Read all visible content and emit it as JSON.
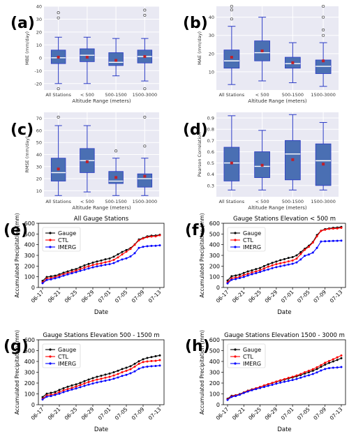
{
  "chart_data": [
    {
      "panel": "(a)",
      "type": "boxplot",
      "title": "",
      "ylabel": "MBE (mm/day)",
      "xlabel": "Altitude Range (meters)",
      "categories": [
        "All Stations",
        "< 500",
        "500-1500",
        "1500-3000"
      ],
      "ylim": [
        -25,
        40
      ],
      "yticks": [
        -20,
        -10,
        0,
        10,
        20,
        30,
        40
      ],
      "boxes": [
        {
          "whislo": -20,
          "q1": -4.5,
          "med": 0,
          "q3": 6,
          "whishi": 16,
          "mean": 0.5,
          "fliers": [
            31,
            35,
            -24
          ]
        },
        {
          "whislo": -20,
          "q1": -3,
          "med": 2,
          "q3": 7,
          "whishi": 16,
          "mean": 0.5,
          "fliers": []
        },
        {
          "whislo": -14,
          "q1": -6,
          "med": -3.5,
          "q3": 4,
          "whishi": 15,
          "mean": -2,
          "fliers": []
        },
        {
          "whislo": -18,
          "q1": -4,
          "med": 1,
          "q3": 6,
          "whishi": 15,
          "mean": 1,
          "fliers": [
            33,
            37,
            -24
          ]
        }
      ]
    },
    {
      "panel": "(b)",
      "type": "boxplot",
      "title": "",
      "ylabel": "MAE (mm/day)",
      "xlabel": "Altitude Range (meters)",
      "categories": [
        "All Stations",
        "< 500",
        "500-1500",
        "1500-3000"
      ],
      "ylim": [
        0,
        46
      ],
      "yticks": [
        10,
        20,
        30,
        40
      ],
      "boxes": [
        {
          "whislo": 3,
          "q1": 12,
          "med": 16,
          "q3": 22,
          "whishi": 35,
          "mean": 18,
          "fliers": [
            39,
            44,
            46
          ]
        },
        {
          "whislo": 5,
          "q1": 16,
          "med": 20.5,
          "q3": 27,
          "whishi": 40,
          "mean": 21.5,
          "fliers": []
        },
        {
          "whislo": 4,
          "q1": 12,
          "med": 14.5,
          "q3": 18,
          "whishi": 26,
          "mean": 15,
          "fliers": []
        },
        {
          "whislo": 2,
          "q1": 9,
          "med": 13,
          "q3": 16.5,
          "whishi": 26,
          "mean": 16,
          "fliers": [
            30,
            33,
            40,
            46
          ]
        }
      ]
    },
    {
      "panel": "(c)",
      "type": "boxplot",
      "title": "",
      "ylabel": "RMSE (mm/day)",
      "xlabel": "Altitude Range (meters)",
      "categories": [
        "All Stations",
        "< 500",
        "500-1500",
        "1500-3000"
      ],
      "ylim": [
        5,
        75
      ],
      "yticks": [
        10,
        20,
        30,
        40,
        50,
        60,
        70
      ],
      "boxes": [
        {
          "whislo": 6,
          "q1": 18,
          "med": 25,
          "q3": 37,
          "whishi": 64,
          "mean": 28,
          "fliers": [
            71
          ]
        },
        {
          "whislo": 9,
          "q1": 25,
          "med": 35,
          "q3": 45,
          "whishi": 64,
          "mean": 34,
          "fliers": []
        },
        {
          "whislo": 6,
          "q1": 16,
          "med": 18,
          "q3": 26,
          "whishi": 37,
          "mean": 21,
          "fliers": [
            43
          ]
        },
        {
          "whislo": 6,
          "q1": 13,
          "med": 20,
          "q3": 24,
          "whishi": 37,
          "mean": 22,
          "fliers": [
            47,
            71
          ]
        }
      ]
    },
    {
      "panel": "(d)",
      "type": "boxplot",
      "title": "",
      "ylabel": "Pearson Correlation",
      "xlabel": "Altitude Range (meters)",
      "categories": [
        "All Stations",
        "< 500",
        "500-1500",
        "1500-3000"
      ],
      "ylim": [
        0.2,
        0.95
      ],
      "yticks": [
        0.3,
        0.4,
        0.5,
        0.6,
        0.7,
        0.8,
        0.9
      ],
      "boxes": [
        {
          "whislo": 0.26,
          "q1": 0.34,
          "med": 0.5,
          "q3": 0.64,
          "whishi": 0.92,
          "mean": 0.5,
          "fliers": []
        },
        {
          "whislo": 0.26,
          "q1": 0.37,
          "med": 0.47,
          "q3": 0.6,
          "whishi": 0.79,
          "mean": 0.48,
          "fliers": []
        },
        {
          "whislo": 0.26,
          "q1": 0.35,
          "med": 0.58,
          "q3": 0.7,
          "whishi": 0.93,
          "mean": 0.53,
          "fliers": []
        },
        {
          "whislo": 0.26,
          "q1": 0.3,
          "med": 0.52,
          "q3": 0.67,
          "whishi": 0.86,
          "mean": 0.49,
          "fliers": []
        }
      ]
    },
    {
      "panel": "(e)",
      "type": "line",
      "title": "All Gauge Stations",
      "xlabel": "Date",
      "ylabel": "Accumulated Precipitation (mm)",
      "xticklabels": [
        "06-17",
        "06-21",
        "06-25",
        "06-29",
        "07-01",
        "07-05",
        "07-09",
        "07-13"
      ],
      "ylim": [
        0,
        600
      ],
      "yticks": [
        0,
        100,
        200,
        300,
        400,
        500,
        600
      ],
      "series": [
        {
          "name": "Gauge",
          "color": "#000000",
          "values": [
            62,
            98,
            104,
            110,
            123,
            138,
            150,
            164,
            172,
            190,
            206,
            220,
            232,
            243,
            252,
            263,
            271,
            288,
            310,
            332,
            350,
            368,
            402,
            448,
            462,
            478,
            484,
            486,
            492
          ]
        },
        {
          "name": "CTL",
          "color": "#ff0000",
          "values": [
            48,
            84,
            90,
            97,
            112,
            124,
            136,
            146,
            158,
            172,
            186,
            198,
            210,
            219,
            226,
            236,
            244,
            258,
            281,
            309,
            334,
            360,
            399,
            440,
            458,
            470,
            476,
            478,
            488
          ]
        },
        {
          "name": "IMERG",
          "color": "#0000ff",
          "values": [
            40,
            70,
            76,
            86,
            96,
            110,
            122,
            133,
            143,
            156,
            166,
            178,
            188,
            197,
            204,
            212,
            218,
            228,
            246,
            262,
            272,
            290,
            320,
            370,
            380,
            386,
            389,
            390,
            394
          ]
        }
      ]
    },
    {
      "panel": "(f)",
      "type": "line",
      "title": "Gauge Stations Elevation < 500 m",
      "xlabel": "Date",
      "ylabel": "Accumulated Precipitation (mm)",
      "xticklabels": [
        "06-17",
        "06-21",
        "06-25",
        "06-29",
        "07-01",
        "07-05",
        "07-09",
        "07-13"
      ],
      "ylim": [
        0,
        600
      ],
      "yticks": [
        0,
        100,
        200,
        300,
        400,
        500,
        600
      ],
      "series": [
        {
          "name": "Gauge",
          "color": "#000000",
          "values": [
            65,
            105,
            112,
            120,
            135,
            150,
            160,
            172,
            182,
            200,
            216,
            230,
            242,
            255,
            265,
            276,
            284,
            300,
            330,
            362,
            390,
            425,
            490,
            530,
            545,
            552,
            558,
            560,
            566
          ]
        },
        {
          "name": "CTL",
          "color": "#ff0000",
          "values": [
            48,
            86,
            92,
            100,
            116,
            128,
            140,
            150,
            162,
            178,
            194,
            206,
            218,
            226,
            234,
            244,
            252,
            270,
            312,
            352,
            380,
            420,
            478,
            528,
            540,
            548,
            550,
            552,
            558
          ]
        },
        {
          "name": "IMERG",
          "color": "#0000ff",
          "values": [
            38,
            72,
            78,
            88,
            98,
            112,
            124,
            134,
            145,
            158,
            168,
            180,
            190,
            198,
            206,
            214,
            222,
            234,
            262,
            296,
            308,
            326,
            370,
            430,
            432,
            434,
            435,
            436,
            438
          ]
        }
      ]
    },
    {
      "panel": "(g)",
      "type": "line",
      "title": "Gauge Stations Elevation 500 - 1500 m",
      "xlabel": "Date",
      "ylabel": "Accumulated Precipitation (mm)",
      "xticklabels": [
        "06-17",
        "06-21",
        "06-25",
        "06-29",
        "07-01",
        "07-05",
        "07-09",
        "07-13"
      ],
      "ylim": [
        0,
        600
      ],
      "yticks": [
        0,
        100,
        200,
        300,
        400,
        500,
        600
      ],
      "series": [
        {
          "name": "Gauge",
          "color": "#000000",
          "values": [
            70,
            102,
            110,
            118,
            136,
            152,
            166,
            178,
            188,
            202,
            218,
            232,
            246,
            258,
            268,
            278,
            288,
            300,
            314,
            330,
            342,
            356,
            378,
            402,
            420,
            432,
            440,
            448,
            456
          ]
        },
        {
          "name": "CTL",
          "color": "#ff0000",
          "values": [
            55,
            86,
            92,
            100,
            118,
            132,
            144,
            156,
            168,
            182,
            196,
            210,
            222,
            232,
            240,
            250,
            258,
            270,
            284,
            300,
            314,
            328,
            352,
            378,
            394,
            400,
            404,
            406,
            412
          ]
        },
        {
          "name": "IMERG",
          "color": "#0000ff",
          "values": [
            48,
            74,
            80,
            90,
            102,
            116,
            128,
            140,
            150,
            162,
            174,
            186,
            196,
            206,
            214,
            222,
            230,
            240,
            252,
            266,
            276,
            290,
            308,
            332,
            346,
            352,
            356,
            358,
            362
          ]
        }
      ]
    },
    {
      "panel": "(h)",
      "type": "line",
      "title": "Gauge Stations Elevation 1500 - 3000 m",
      "xlabel": "Date",
      "ylabel": "Accumulated Precipitation (mm)",
      "xticklabels": [
        "06-17",
        "06-21",
        "06-25",
        "06-29",
        "07-01",
        "07-05",
        "07-09",
        "07-13"
      ],
      "ylim": [
        0,
        600
      ],
      "yticks": [
        0,
        100,
        200,
        300,
        400,
        500,
        600
      ],
      "series": [
        {
          "name": "Gauge",
          "color": "#000000",
          "values": [
            55,
            82,
            88,
            98,
            114,
            130,
            142,
            152,
            164,
            176,
            188,
            200,
            212,
            222,
            232,
            242,
            252,
            262,
            274,
            288,
            300,
            314,
            330,
            350,
            370,
            386,
            400,
            414,
            430
          ]
        },
        {
          "name": "CTL",
          "color": "#ff0000",
          "values": [
            50,
            78,
            86,
            96,
            112,
            128,
            140,
            152,
            164,
            178,
            190,
            202,
            214,
            226,
            236,
            248,
            258,
            270,
            284,
            300,
            314,
            328,
            346,
            366,
            388,
            404,
            420,
            438,
            455
          ]
        },
        {
          "name": "IMERG",
          "color": "#0000ff",
          "values": [
            44,
            72,
            80,
            92,
            108,
            122,
            134,
            144,
            154,
            164,
            174,
            184,
            194,
            204,
            212,
            220,
            228,
            238,
            250,
            262,
            272,
            284,
            298,
            316,
            330,
            338,
            342,
            344,
            348
          ]
        }
      ]
    }
  ]
}
